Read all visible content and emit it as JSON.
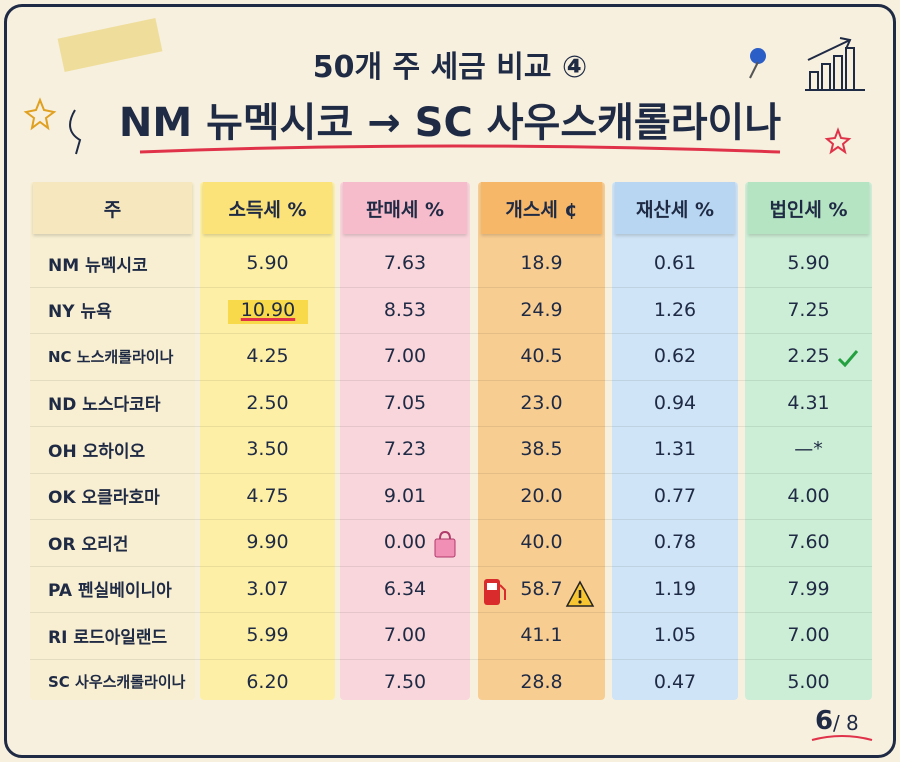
{
  "header": {
    "title_line1": "50개 주 세금 비교 ④",
    "title_line2": "NM 뉴멕시코 → SC 사우스캐롤라이나"
  },
  "table": {
    "columns": [
      "주",
      "소득세 %",
      "판매세 %",
      "개스세 ¢",
      "재산세 %",
      "법인세 %"
    ],
    "rows": [
      [
        "NM 뉴멕시코",
        "5.90",
        "7.63",
        "18.9",
        "0.61",
        "5.90"
      ],
      [
        "NY 뉴욕",
        "10.90",
        "8.53",
        "24.9",
        "1.26",
        "7.25"
      ],
      [
        "NC 노스캐롤라이나",
        "4.25",
        "7.00",
        "40.5",
        "0.62",
        "2.25"
      ],
      [
        "ND 노스다코타",
        "2.50",
        "7.05",
        "23.0",
        "0.94",
        "4.31"
      ],
      [
        "OH 오하이오",
        "3.50",
        "7.23",
        "38.5",
        "1.31",
        "—*"
      ],
      [
        "OK 오클라호마",
        "4.75",
        "9.01",
        "20.0",
        "0.77",
        "4.00"
      ],
      [
        "OR 오리건",
        "9.90",
        "0.00",
        "40.0",
        "0.78",
        "7.60"
      ],
      [
        "PA 펜실베이니아",
        "3.07",
        "6.34",
        "58.7",
        "1.19",
        "7.99"
      ],
      [
        "RI 로드아일랜드",
        "5.99",
        "7.00",
        "41.1",
        "1.05",
        "7.00"
      ],
      [
        "SC 사우스캐롤라이나",
        "6.20",
        "7.50",
        "28.8",
        "0.47",
        "5.00"
      ]
    ]
  },
  "page": {
    "current": "6",
    "separator": "/",
    "total": "8"
  }
}
